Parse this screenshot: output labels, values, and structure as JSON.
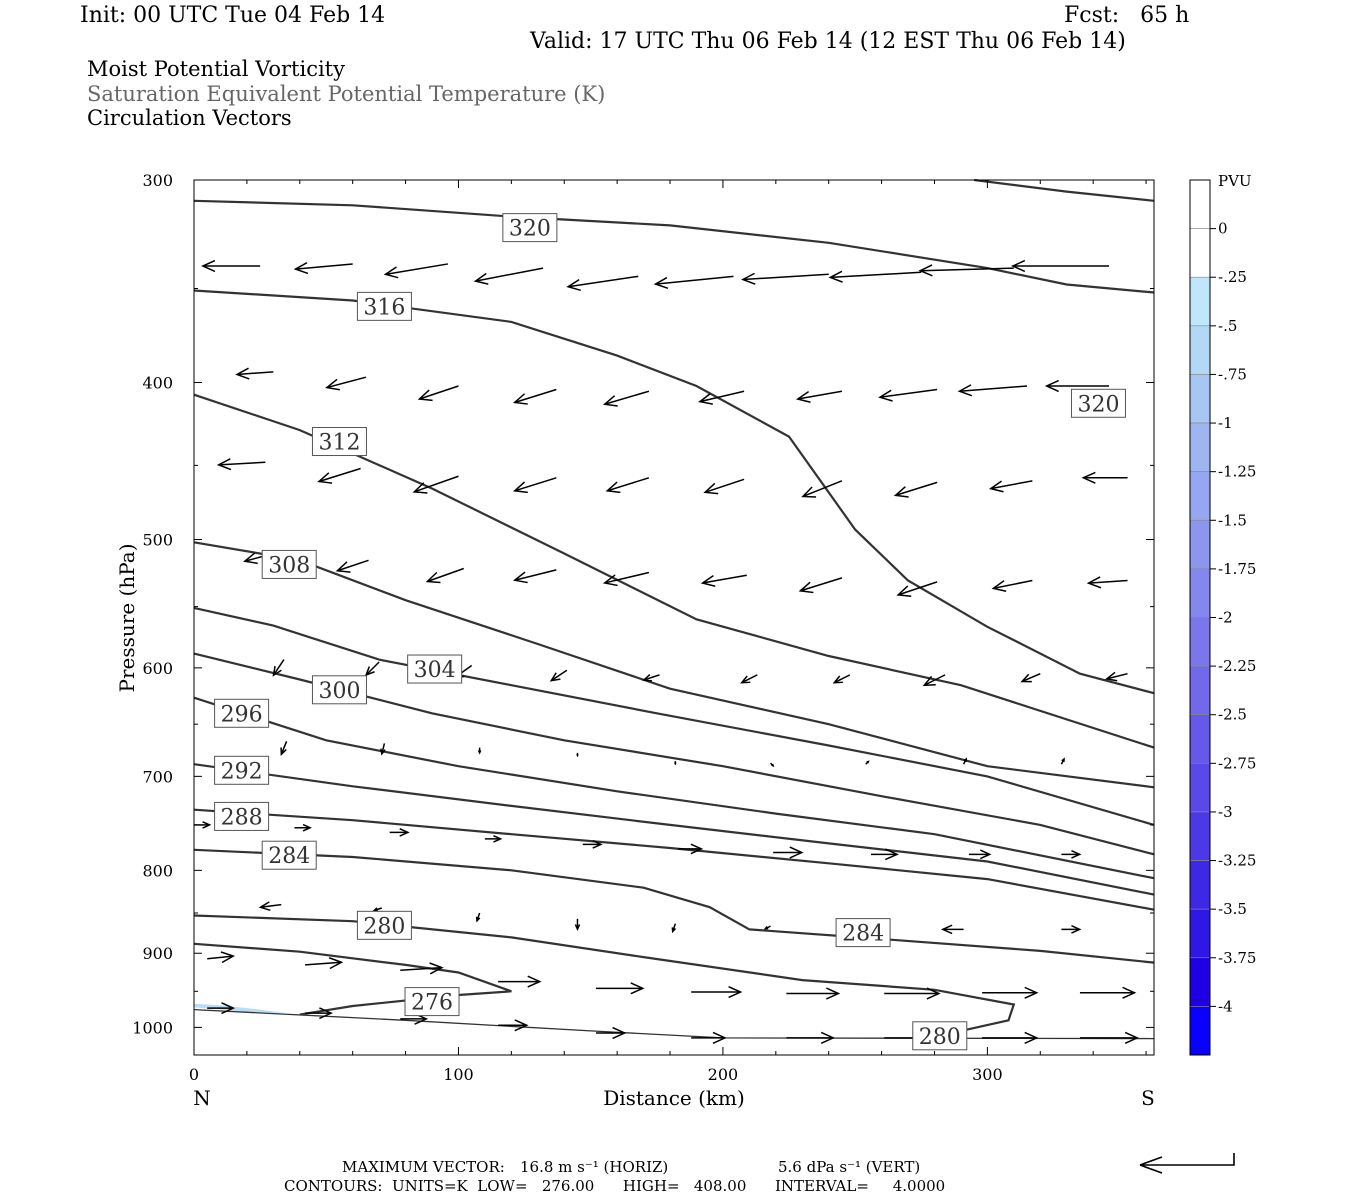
{
  "header": {
    "init": "Init: 00 UTC Tue 04 Feb 14",
    "fcst": "Fcst:   65 h",
    "valid": "Valid: 17 UTC Thu 06 Feb 14 (12 EST Thu 06 Feb 14)"
  },
  "fields": [
    "Moist Potential Vorticity",
    "Saturation Equivalent Potential Temperature (K)",
    "Circulation Vectors"
  ],
  "footer": {
    "max_vector_label": "MAXIMUM VECTOR:",
    "max_vector_horiz": "16.8 m s⁻¹ (HORIZ)",
    "max_vector_vert": "5.6 dPa s⁻¹ (VERT)",
    "contours": "CONTOURS:  UNITS=K  LOW=   276.00      HIGH=   408.00      INTERVAL=     4.0000"
  },
  "colors": {
    "contour": "#333333",
    "pv_light": "#b8def6"
  },
  "chart_data": {
    "type": "cross-section",
    "xlabel": "Distance (km)",
    "ylabel": "Pressure (hPa)",
    "xlim": [
      0,
      363
    ],
    "ylim": [
      300,
      1040
    ],
    "y_log": true,
    "x_ticks": [
      0,
      100,
      200,
      300
    ],
    "y_ticks": [
      300,
      400,
      500,
      600,
      700,
      800,
      900,
      1000
    ],
    "x_end_labels": {
      "left": "N",
      "right": "S"
    },
    "contour_units": "K",
    "contours": [
      {
        "value": 320,
        "label": "320",
        "label_at": [
          127,
          321
        ],
        "points": [
          [
            0,
            309
          ],
          [
            60,
            311
          ],
          [
            120,
            316
          ],
          [
            180,
            320
          ],
          [
            240,
            328
          ],
          [
            300,
            340
          ],
          [
            330,
            348
          ],
          [
            363,
            352
          ]
        ]
      },
      {
        "value": 320,
        "label": "320",
        "label_at": [
          342,
          412
        ],
        "points": [
          [
            295,
            300
          ],
          [
            330,
            305
          ],
          [
            363,
            309
          ]
        ]
      },
      {
        "value": 316,
        "label": "316",
        "label_at": [
          72,
          359
        ],
        "points": [
          [
            0,
            351
          ],
          [
            60,
            356
          ],
          [
            120,
            367
          ],
          [
            160,
            385
          ],
          [
            190,
            402
          ],
          [
            225,
            432
          ],
          [
            250,
            493
          ],
          [
            270,
            530
          ],
          [
            300,
            566
          ],
          [
            335,
            605
          ],
          [
            363,
            622
          ]
        ]
      },
      {
        "value": 312,
        "label": "312",
        "label_at": [
          55,
          435
        ],
        "points": [
          [
            0,
            407
          ],
          [
            40,
            428
          ],
          [
            90,
            465
          ],
          [
            140,
            510
          ],
          [
            190,
            560
          ],
          [
            240,
            590
          ],
          [
            290,
            615
          ],
          [
            363,
            672
          ]
        ]
      },
      {
        "value": 308,
        "label": "308",
        "label_at": [
          36,
          518
        ],
        "points": [
          [
            0,
            502
          ],
          [
            40,
            515
          ],
          [
            80,
            545
          ],
          [
            130,
            580
          ],
          [
            180,
            618
          ],
          [
            240,
            650
          ],
          [
            300,
            690
          ],
          [
            363,
            711
          ]
        ]
      },
      {
        "value": 304,
        "label": "304",
        "label_at": [
          91,
          601
        ],
        "points": [
          [
            0,
            551
          ],
          [
            30,
            565
          ],
          [
            70,
            593
          ],
          [
            120,
            615
          ],
          [
            175,
            640
          ],
          [
            240,
            670
          ],
          [
            300,
            700
          ],
          [
            363,
            750
          ]
        ]
      },
      {
        "value": 300,
        "label": "300",
        "label_at": [
          55,
          619
        ],
        "points": [
          [
            0,
            588
          ],
          [
            40,
            610
          ],
          [
            90,
            640
          ],
          [
            140,
            665
          ],
          [
            200,
            690
          ],
          [
            260,
            720
          ],
          [
            320,
            750
          ],
          [
            363,
            782
          ]
        ]
      },
      {
        "value": 296,
        "label": "296",
        "label_at": [
          18,
          640
        ],
        "points": [
          [
            0,
            626
          ],
          [
            50,
            665
          ],
          [
            100,
            690
          ],
          [
            160,
            715
          ],
          [
            220,
            738
          ],
          [
            280,
            760
          ],
          [
            363,
            809
          ]
        ]
      },
      {
        "value": 292,
        "label": "292",
        "label_at": [
          18,
          694
        ],
        "points": [
          [
            0,
            688
          ],
          [
            60,
            710
          ],
          [
            120,
            730
          ],
          [
            180,
            750
          ],
          [
            240,
            770
          ],
          [
            300,
            790
          ],
          [
            363,
            828
          ]
        ]
      },
      {
        "value": 288,
        "label": "288",
        "label_at": [
          18,
          741
        ],
        "points": [
          [
            0,
            734
          ],
          [
            60,
            745
          ],
          [
            120,
            760
          ],
          [
            180,
            775
          ],
          [
            240,
            792
          ],
          [
            300,
            810
          ],
          [
            363,
            846
          ]
        ]
      },
      {
        "value": 284,
        "label": "284",
        "label_at": [
          36,
          783
        ],
        "points": [
          [
            0,
            777
          ],
          [
            60,
            785
          ],
          [
            120,
            800
          ],
          [
            170,
            820
          ],
          [
            195,
            843
          ],
          [
            210,
            870
          ],
          [
            260,
            882
          ],
          [
            320,
            897
          ],
          [
            363,
            912
          ]
        ]
      },
      {
        "value": 284,
        "label": "284",
        "label_at": [
          253,
          874
        ],
        "points": []
      },
      {
        "value": 280,
        "label": "280",
        "label_at": [
          72,
          865
        ],
        "points": [
          [
            0,
            853
          ],
          [
            60,
            860
          ],
          [
            120,
            880
          ],
          [
            170,
            905
          ],
          [
            230,
            935
          ],
          [
            280,
            948
          ],
          [
            310,
            968
          ],
          [
            308,
            990
          ],
          [
            290,
            1005
          ]
        ]
      },
      {
        "value": 280,
        "label": "280",
        "label_at": [
          282,
          1012
        ],
        "points": []
      },
      {
        "value": 276,
        "label": "276",
        "label_at": [
          90,
          964
        ],
        "points": [
          [
            0,
            888
          ],
          [
            40,
            898
          ],
          [
            80,
            915
          ],
          [
            100,
            925
          ],
          [
            120,
            950
          ],
          [
            100,
            955
          ],
          [
            60,
            970
          ],
          [
            40,
            982
          ]
        ]
      },
      {
        "value": 0,
        "label": "",
        "points": [
          [
            0,
            975
          ],
          [
            80,
            990
          ],
          [
            150,
            1005
          ],
          [
            200,
            1015
          ],
          [
            363,
            1016
          ]
        ]
      }
    ],
    "pv_shading": [
      {
        "level": "-0.25 to -0.5",
        "points": [
          [
            0,
            967
          ],
          [
            10,
            969
          ],
          [
            25,
            975
          ],
          [
            35,
            980
          ],
          [
            20,
            978
          ],
          [
            0,
            972
          ]
        ]
      }
    ],
    "circulation_vectors": [
      {
        "x": 25,
        "p": 339,
        "u": -22,
        "w": 0
      },
      {
        "x": 60,
        "p": 338,
        "u": -22,
        "w": -2
      },
      {
        "x": 96,
        "p": 338,
        "u": -24,
        "w": -4
      },
      {
        "x": 132,
        "p": 340,
        "u": -26,
        "w": -5
      },
      {
        "x": 168,
        "p": 344,
        "u": -27,
        "w": -4
      },
      {
        "x": 204,
        "p": 344,
        "u": -30,
        "w": -3
      },
      {
        "x": 240,
        "p": 343,
        "u": -33,
        "w": -2
      },
      {
        "x": 275,
        "p": 342,
        "u": -35,
        "w": -2
      },
      {
        "x": 310,
        "p": 340,
        "u": -36,
        "w": -1
      },
      {
        "x": 346,
        "p": 339,
        "u": -37,
        "w": 0
      },
      {
        "x": 30,
        "p": 394,
        "u": -14,
        "w": -1
      },
      {
        "x": 65,
        "p": 397,
        "u": -15,
        "w": -4
      },
      {
        "x": 100,
        "p": 402,
        "u": -15,
        "w": -5
      },
      {
        "x": 137,
        "p": 404,
        "u": -16,
        "w": -5
      },
      {
        "x": 172,
        "p": 405,
        "u": -17,
        "w": -5
      },
      {
        "x": 208,
        "p": 405,
        "u": -17,
        "w": -4
      },
      {
        "x": 245,
        "p": 405,
        "u": -17,
        "w": -3
      },
      {
        "x": 281,
        "p": 404,
        "u": -22,
        "w": -3
      },
      {
        "x": 315,
        "p": 402,
        "u": -26,
        "w": -2
      },
      {
        "x": 346,
        "p": 402,
        "u": -24,
        "w": 0
      },
      {
        "x": 27,
        "p": 448,
        "u": -18,
        "w": -1
      },
      {
        "x": 63,
        "p": 452,
        "u": -16,
        "w": -5
      },
      {
        "x": 100,
        "p": 457,
        "u": -17,
        "w": -6
      },
      {
        "x": 137,
        "p": 458,
        "u": -16,
        "w": -5
      },
      {
        "x": 172,
        "p": 458,
        "u": -16,
        "w": -5
      },
      {
        "x": 208,
        "p": 459,
        "u": -15,
        "w": -5
      },
      {
        "x": 245,
        "p": 460,
        "u": -15,
        "w": -6
      },
      {
        "x": 281,
        "p": 461,
        "u": -16,
        "w": -5
      },
      {
        "x": 317,
        "p": 460,
        "u": -16,
        "w": -3
      },
      {
        "x": 353,
        "p": 458,
        "u": -17,
        "w": 0
      },
      {
        "x": 30,
        "p": 510,
        "u": -11,
        "w": -3
      },
      {
        "x": 66,
        "p": 515,
        "u": -12,
        "w": -4
      },
      {
        "x": 102,
        "p": 521,
        "u": -14,
        "w": -5
      },
      {
        "x": 137,
        "p": 522,
        "u": -16,
        "w": -4
      },
      {
        "x": 172,
        "p": 524,
        "u": -17,
        "w": -4
      },
      {
        "x": 209,
        "p": 526,
        "u": -17,
        "w": -3
      },
      {
        "x": 245,
        "p": 528,
        "u": -16,
        "w": -5
      },
      {
        "x": 281,
        "p": 531,
        "u": -15,
        "w": -5
      },
      {
        "x": 317,
        "p": 530,
        "u": -15,
        "w": -3
      },
      {
        "x": 353,
        "p": 530,
        "u": -15,
        "w": -1
      },
      {
        "x": 34,
        "p": 593,
        "u": -4,
        "w": -6
      },
      {
        "x": 70,
        "p": 595,
        "u": -5,
        "w": -5
      },
      {
        "x": 105,
        "p": 598,
        "u": -7,
        "w": -5
      },
      {
        "x": 141,
        "p": 602,
        "u": -6,
        "w": -4
      },
      {
        "x": 176,
        "p": 606,
        "u": -6,
        "w": -2
      },
      {
        "x": 213,
        "p": 606,
        "u": -6,
        "w": -3
      },
      {
        "x": 248,
        "p": 606,
        "u": -6,
        "w": -3
      },
      {
        "x": 284,
        "p": 606,
        "u": -8,
        "w": -4
      },
      {
        "x": 320,
        "p": 605,
        "u": -7,
        "w": -3
      },
      {
        "x": 353,
        "p": 605,
        "u": -8,
        "w": -2
      },
      {
        "x": 35,
        "p": 666,
        "u": -2,
        "w": -5
      },
      {
        "x": 72,
        "p": 668,
        "u": -1,
        "w": -4
      },
      {
        "x": 108,
        "p": 672,
        "u": 0,
        "w": -2
      },
      {
        "x": 145,
        "p": 677,
        "u": 0,
        "w": -1
      },
      {
        "x": 182,
        "p": 685,
        "u": 0,
        "w": -1
      },
      {
        "x": 218,
        "p": 687,
        "u": 1,
        "w": -1
      },
      {
        "x": 254,
        "p": 688,
        "u": 1,
        "w": 1
      },
      {
        "x": 291,
        "p": 688,
        "u": 1,
        "w": 2
      },
      {
        "x": 328,
        "p": 688,
        "u": 1,
        "w": 2
      },
      {
        "x": 0,
        "p": 750,
        "u": 6,
        "w": 0
      },
      {
        "x": 38,
        "p": 753,
        "u": 6,
        "w": 0
      },
      {
        "x": 74,
        "p": 758,
        "u": 7,
        "w": 0
      },
      {
        "x": 110,
        "p": 765,
        "u": 6,
        "w": 0
      },
      {
        "x": 147,
        "p": 771,
        "u": 7,
        "w": 0
      },
      {
        "x": 183,
        "p": 776,
        "u": 9,
        "w": 0
      },
      {
        "x": 219,
        "p": 780,
        "u": 11,
        "w": 0
      },
      {
        "x": 256,
        "p": 782,
        "u": 10,
        "w": 0
      },
      {
        "x": 293,
        "p": 782,
        "u": 8,
        "w": 0
      },
      {
        "x": 328,
        "p": 782,
        "u": 7,
        "w": 0
      },
      {
        "x": 33,
        "p": 840,
        "u": -8,
        "w": -1
      },
      {
        "x": 71,
        "p": 844,
        "u": -3,
        "w": -1
      },
      {
        "x": 108,
        "p": 850,
        "u": -1,
        "w": -3
      },
      {
        "x": 145,
        "p": 857,
        "u": 0,
        "w": -4
      },
      {
        "x": 182,
        "p": 863,
        "u": -1,
        "w": -3
      },
      {
        "x": 218,
        "p": 866,
        "u": -2,
        "w": -1
      },
      {
        "x": 254,
        "p": 870,
        "u": -4,
        "w": 0
      },
      {
        "x": 291,
        "p": 870,
        "u": -8,
        "w": 0
      },
      {
        "x": 328,
        "p": 870,
        "u": 7,
        "w": 0
      },
      {
        "x": 5,
        "p": 907,
        "u": 10,
        "w": 1
      },
      {
        "x": 42,
        "p": 915,
        "u": 14,
        "w": 1
      },
      {
        "x": 78,
        "p": 922,
        "u": 16,
        "w": 1
      },
      {
        "x": 115,
        "p": 937,
        "u": 16,
        "w": 0
      },
      {
        "x": 152,
        "p": 946,
        "u": 18,
        "w": 0
      },
      {
        "x": 188,
        "p": 951,
        "u": 19,
        "w": 0
      },
      {
        "x": 224,
        "p": 953,
        "u": 20,
        "w": 0
      },
      {
        "x": 261,
        "p": 953,
        "u": 21,
        "w": 0
      },
      {
        "x": 298,
        "p": 952,
        "u": 21,
        "w": 0
      },
      {
        "x": 335,
        "p": 952,
        "u": 21,
        "w": 0
      },
      {
        "x": 5,
        "p": 973,
        "u": 10,
        "w": 0
      },
      {
        "x": 42,
        "p": 980,
        "u": 10,
        "w": 0
      },
      {
        "x": 78,
        "p": 988,
        "u": 10,
        "w": 0
      },
      {
        "x": 115,
        "p": 997,
        "u": 11,
        "w": 0
      },
      {
        "x": 152,
        "p": 1008,
        "u": 11,
        "w": 0
      },
      {
        "x": 188,
        "p": 1015,
        "u": 13,
        "w": 0
      },
      {
        "x": 224,
        "p": 1015,
        "u": 18,
        "w": 0
      },
      {
        "x": 261,
        "p": 1015,
        "u": 20,
        "w": 0
      },
      {
        "x": 298,
        "p": 1015,
        "u": 21,
        "w": 0
      },
      {
        "x": 335,
        "p": 1015,
        "u": 22,
        "w": 0
      }
    ],
    "colorbar": {
      "title": "PVU",
      "labels": [
        "0",
        "-.25",
        "-.5",
        "-.75",
        "-1",
        "-1.25",
        "-1.5",
        "-1.75",
        "-2",
        "-2.25",
        "-2.5",
        "-2.75",
        "-3",
        "-3.25",
        "-3.5",
        "-3.75",
        "-4"
      ],
      "colors": [
        "#ffffff",
        "#ffffff",
        "#bfe6fa",
        "#b2d8f6",
        "#a8c6f4",
        "#9fb5f2",
        "#96a6f0",
        "#8d96ee",
        "#8487ed",
        "#7b77eb",
        "#7168ea",
        "#6658e9",
        "#5a48e8",
        "#4d38e7",
        "#3f27e6",
        "#2f17e6",
        "#1f00e5",
        "#0a00ff"
      ]
    }
  }
}
